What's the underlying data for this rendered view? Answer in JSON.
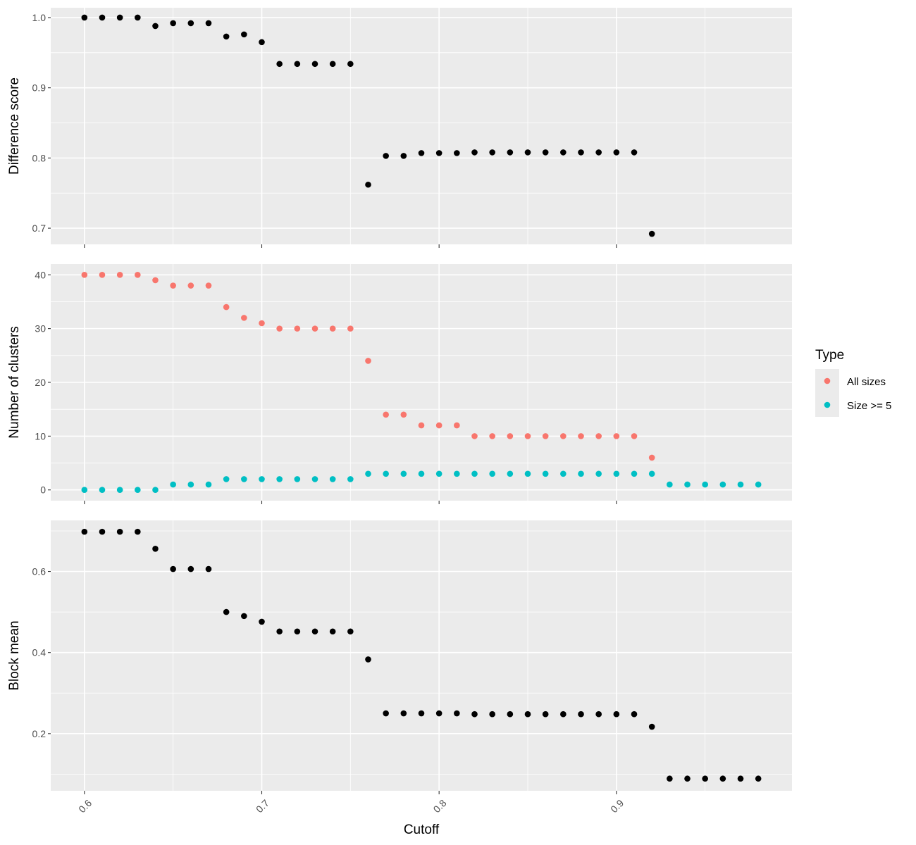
{
  "chart_data": {
    "type": "scatter",
    "xlabel": "Cutoff",
    "xlim": [
      0.581,
      0.999
    ],
    "x_ticks": [
      0.6,
      0.7,
      0.8,
      0.9
    ],
    "x_tick_labels": [
      "0.6",
      "0.7",
      "0.8",
      "0.9"
    ],
    "grid": true,
    "legend": {
      "title": "Type",
      "placement": "right",
      "entries": [
        {
          "label": "All sizes",
          "color": "#F8766D"
        },
        {
          "label": "Size >= 5",
          "color": "#00BFC4"
        }
      ]
    },
    "panels": [
      {
        "ylabel": "Difference score",
        "ylim": [
          0.677,
          1.014
        ],
        "y_ticks": [
          0.7,
          0.8,
          0.9,
          1.0
        ],
        "y_tick_labels": [
          "0.7",
          "0.8",
          "0.9",
          "1.0"
        ],
        "series": [
          {
            "color": "#000000",
            "x": [
              0.6,
              0.61,
              0.62,
              0.63,
              0.64,
              0.65,
              0.66,
              0.67,
              0.68,
              0.69,
              0.7,
              0.71,
              0.72,
              0.73,
              0.74,
              0.75,
              0.76,
              0.77,
              0.78,
              0.79,
              0.8,
              0.81,
              0.82,
              0.83,
              0.84,
              0.85,
              0.86,
              0.87,
              0.88,
              0.89,
              0.9,
              0.91,
              0.92
            ],
            "y": [
              1.0,
              1.0,
              1.0,
              1.0,
              0.988,
              0.992,
              0.992,
              0.992,
              0.973,
              0.976,
              0.965,
              0.934,
              0.934,
              0.934,
              0.934,
              0.934,
              0.762,
              0.803,
              0.803,
              0.807,
              0.807,
              0.807,
              0.808,
              0.808,
              0.808,
              0.808,
              0.808,
              0.808,
              0.808,
              0.808,
              0.808,
              0.808,
              0.692
            ]
          }
        ]
      },
      {
        "ylabel": "Number of clusters",
        "ylim": [
          -2,
          42
        ],
        "y_ticks": [
          0,
          10,
          20,
          30,
          40
        ],
        "y_tick_labels": [
          "0",
          "10",
          "20",
          "30",
          "40"
        ],
        "series": [
          {
            "name": "All sizes",
            "color": "#F8766D",
            "x": [
              0.6,
              0.61,
              0.62,
              0.63,
              0.64,
              0.65,
              0.66,
              0.67,
              0.68,
              0.69,
              0.7,
              0.71,
              0.72,
              0.73,
              0.74,
              0.75,
              0.76,
              0.77,
              0.78,
              0.79,
              0.8,
              0.81,
              0.82,
              0.83,
              0.84,
              0.85,
              0.86,
              0.87,
              0.88,
              0.89,
              0.9,
              0.91,
              0.92
            ],
            "y": [
              40,
              40,
              40,
              40,
              39,
              38,
              38,
              38,
              34,
              32,
              31,
              30,
              30,
              30,
              30,
              30,
              24,
              14,
              14,
              12,
              12,
              12,
              10,
              10,
              10,
              10,
              10,
              10,
              10,
              10,
              10,
              10,
              6
            ]
          },
          {
            "name": "Size >= 5",
            "color": "#00BFC4",
            "x": [
              0.6,
              0.61,
              0.62,
              0.63,
              0.64,
              0.65,
              0.66,
              0.67,
              0.68,
              0.69,
              0.7,
              0.71,
              0.72,
              0.73,
              0.74,
              0.75,
              0.76,
              0.77,
              0.78,
              0.79,
              0.8,
              0.81,
              0.82,
              0.83,
              0.84,
              0.85,
              0.86,
              0.87,
              0.88,
              0.89,
              0.9,
              0.91,
              0.92,
              0.93,
              0.94,
              0.95,
              0.96,
              0.97,
              0.98
            ],
            "y": [
              0,
              0,
              0,
              0,
              0,
              1,
              1,
              1,
              2,
              2,
              2,
              2,
              2,
              2,
              2,
              2,
              3,
              3,
              3,
              3,
              3,
              3,
              3,
              3,
              3,
              3,
              3,
              3,
              3,
              3,
              3,
              3,
              3,
              1,
              1,
              1,
              1,
              1,
              1
            ]
          }
        ]
      },
      {
        "ylabel": "Block mean",
        "ylim": [
          0.059,
          0.726
        ],
        "y_ticks": [
          0.2,
          0.4,
          0.6
        ],
        "y_tick_labels": [
          "0.2",
          "0.4",
          "0.6"
        ],
        "series": [
          {
            "color": "#000000",
            "x": [
              0.6,
              0.61,
              0.62,
              0.63,
              0.64,
              0.65,
              0.66,
              0.67,
              0.68,
              0.69,
              0.7,
              0.71,
              0.72,
              0.73,
              0.74,
              0.75,
              0.76,
              0.77,
              0.78,
              0.79,
              0.8,
              0.81,
              0.82,
              0.83,
              0.84,
              0.85,
              0.86,
              0.87,
              0.88,
              0.89,
              0.9,
              0.91,
              0.92,
              0.93,
              0.94,
              0.95,
              0.96,
              0.97,
              0.98
            ],
            "y": [
              0.698,
              0.698,
              0.698,
              0.698,
              0.656,
              0.606,
              0.606,
              0.606,
              0.5,
              0.49,
              0.476,
              0.452,
              0.452,
              0.452,
              0.452,
              0.452,
              0.383,
              0.25,
              0.25,
              0.25,
              0.25,
              0.25,
              0.248,
              0.248,
              0.248,
              0.248,
              0.248,
              0.248,
              0.248,
              0.248,
              0.248,
              0.248,
              0.217,
              0.089,
              0.089,
              0.089,
              0.089,
              0.089,
              0.089
            ]
          }
        ]
      }
    ]
  }
}
